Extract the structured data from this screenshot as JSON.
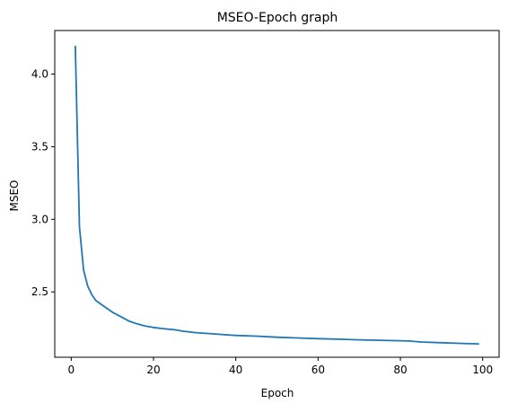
{
  "chart_data": {
    "type": "line",
    "title": "MSEO-Epoch graph",
    "xlabel": "Epoch",
    "ylabel": "MSEO",
    "xlim": [
      -4,
      104
    ],
    "ylim": [
      2.05,
      4.3
    ],
    "xticks": [
      0,
      20,
      40,
      60,
      80,
      100
    ],
    "yticks": [
      2.5,
      3.0,
      3.5,
      4.0
    ],
    "xtick_labels": [
      "0",
      "20",
      "40",
      "60",
      "80",
      "100"
    ],
    "ytick_labels": [
      "2.5",
      "3.0",
      "3.5",
      "4.0"
    ],
    "grid": false,
    "legend": "none",
    "series": [
      {
        "color": "#1f77b4",
        "x": [
          1,
          2,
          3,
          4,
          5,
          6,
          7,
          8,
          9,
          10,
          12,
          14,
          16,
          18,
          20,
          22,
          25,
          27,
          30,
          35,
          40,
          45,
          50,
          55,
          60,
          65,
          70,
          75,
          80,
          82,
          85,
          90,
          95,
          99
        ],
        "y": [
          4.19,
          2.95,
          2.65,
          2.54,
          2.48,
          2.44,
          2.42,
          2.4,
          2.38,
          2.36,
          2.33,
          2.3,
          2.28,
          2.265,
          2.255,
          2.248,
          2.24,
          2.23,
          2.22,
          2.21,
          2.2,
          2.195,
          2.188,
          2.183,
          2.178,
          2.174,
          2.17,
          2.167,
          2.164,
          2.162,
          2.155,
          2.15,
          2.145,
          2.142
        ]
      }
    ]
  }
}
